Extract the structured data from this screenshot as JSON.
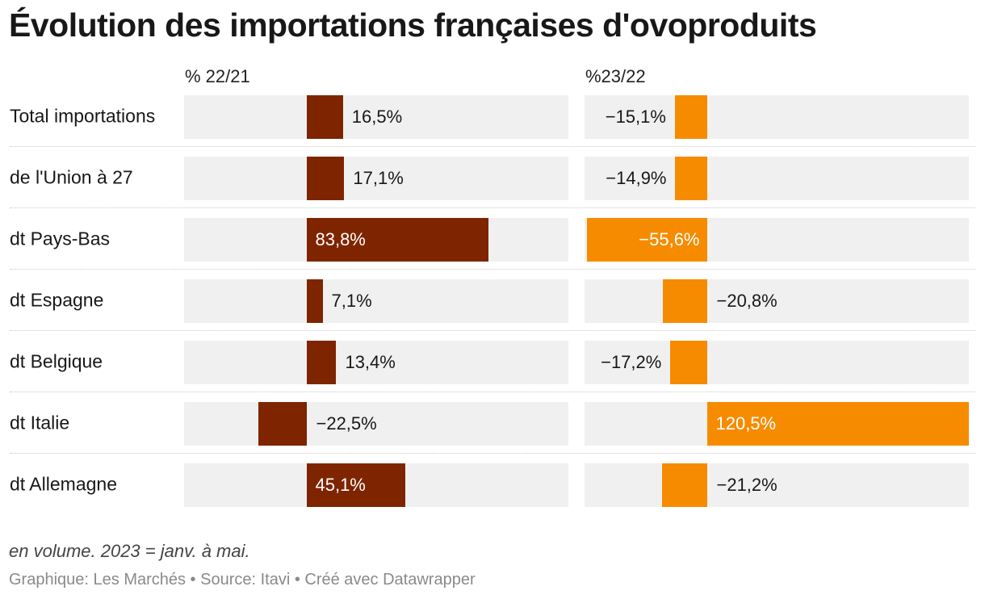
{
  "chart_data": {
    "type": "bar",
    "title": "Évolution des importations françaises d'ovoproduits",
    "categories": [
      "Total importations",
      "de l'Union à 27",
      "dt Pays-Bas",
      "dt Espagne",
      "dt Belgique",
      "dt Italie",
      "dt Allemagne"
    ],
    "series": [
      {
        "name": "% 22/21",
        "color": "#7e2500",
        "values": [
          16.5,
          17.1,
          83.8,
          7.1,
          13.4,
          -22.5,
          45.1
        ],
        "labels": [
          "16,5%",
          "17,1%",
          "83,8%",
          "7,1%",
          "13,4%",
          "−22,5%",
          "45,1%"
        ]
      },
      {
        "name": "%23/22",
        "color": "#f68b00",
        "values": [
          -15.1,
          -14.9,
          -55.6,
          -20.8,
          -17.2,
          120.5,
          -21.2
        ],
        "labels": [
          "−15,1%",
          "−14,9%",
          "−55,6%",
          "−20,8%",
          "−17,2%",
          "120,5%",
          "−21,2%"
        ]
      }
    ],
    "xlim": [
      -56.8,
      120.5
    ],
    "grid": false,
    "legend": "none",
    "track_color": "#f0f0f0"
  },
  "note": "en volume. 2023 = janv. à mai.",
  "credit": "Graphique: Les Marchés • Source: Itavi • Créé avec Datawrapper"
}
